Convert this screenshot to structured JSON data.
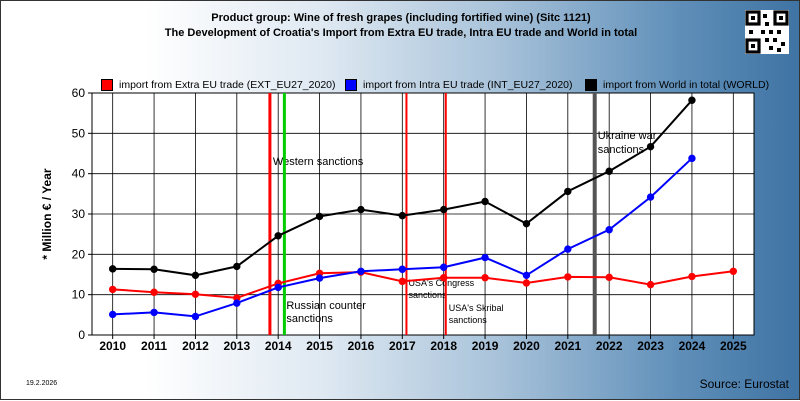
{
  "title_line1": "Product group: Wine of fresh grapes (including fortified wine) (Sitc 1121)",
  "title_line2": "The Development of Croatia's Import from Extra EU trade, Intra EU trade and World in total",
  "date": "19.2.2026",
  "source": "Source: Eurostat",
  "colors": {
    "red": "#ff0000",
    "blue": "#0000ff",
    "black": "#000000",
    "green": "#00cc00",
    "gray": "#555555"
  },
  "chart_data": {
    "type": "line",
    "ylabel": "* Million € / Year",
    "xlabel": "",
    "ylim": [
      0,
      60
    ],
    "yticks": [
      0,
      10,
      20,
      30,
      40,
      50,
      60
    ],
    "categories": [
      "2010",
      "2011",
      "2012",
      "2013",
      "2014",
      "2015",
      "2016",
      "2017",
      "2018",
      "2019",
      "2020",
      "2021",
      "2022",
      "2023",
      "2024",
      "2025"
    ],
    "grid": true,
    "legend_placement": "top",
    "series": [
      {
        "name": "import from Extra EU trade (EXT_EU27_2020)",
        "color": "red",
        "values": [
          11.3,
          10.6,
          10.1,
          9.2,
          12.8,
          15.3,
          15.6,
          13.3,
          14.2,
          14.2,
          12.9,
          14.4,
          14.3,
          12.5,
          14.5,
          15.8
        ]
      },
      {
        "name": "import from Intra EU trade (INT_EU27_2020)",
        "color": "blue",
        "values": [
          5.1,
          5.6,
          4.6,
          7.9,
          11.8,
          14.1,
          15.8,
          16.3,
          16.8,
          19.2,
          14.8,
          21.3,
          26.1,
          34.2,
          43.8,
          null
        ]
      },
      {
        "name": "import from World in total (WORLD)",
        "color": "black",
        "values": [
          16.4,
          16.3,
          14.8,
          17.0,
          24.6,
          29.4,
          31.1,
          29.6,
          31.1,
          33.1,
          27.6,
          35.6,
          40.6,
          46.7,
          58.2,
          null
        ]
      }
    ],
    "markers": [
      {
        "label": "Western sanctions",
        "position": 2013.8,
        "color": "red"
      },
      {
        "label": "Russian counter sanctions",
        "position": 2014.15,
        "color": "green"
      },
      {
        "label": "USA's Congress sanctions",
        "position": 2017.1,
        "color": "red"
      },
      {
        "label": "USA's Skribal sanctions",
        "position": 2018.05,
        "color": "red"
      },
      {
        "label": "Ukraine war sanctions",
        "position": 2021.65,
        "color": "gray"
      }
    ]
  }
}
